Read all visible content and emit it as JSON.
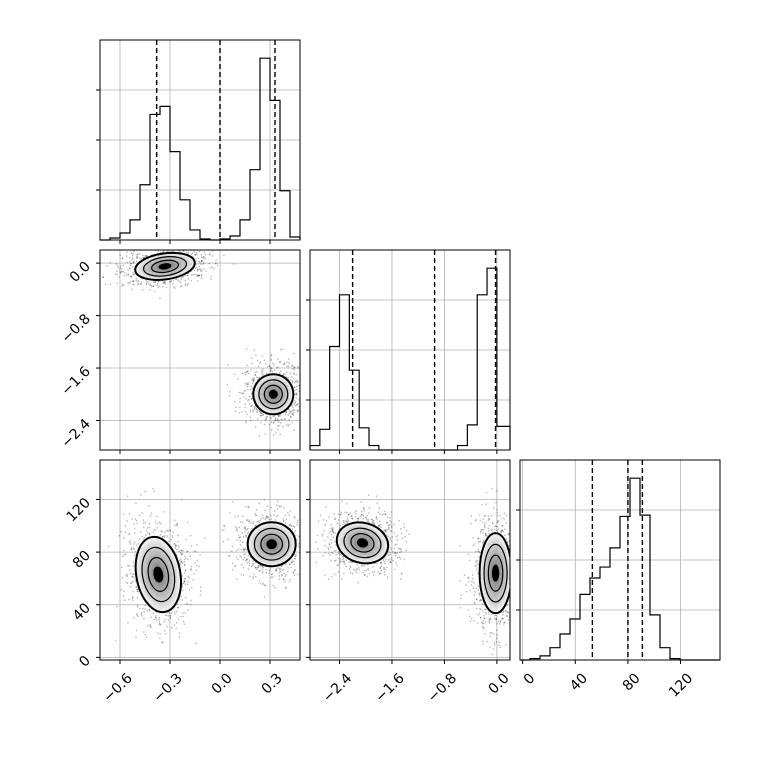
{
  "chart_data": {
    "type": "corner",
    "parameters": [
      "",
      "",
      ""
    ],
    "ranges": [
      [
        -0.72,
        0.48
      ],
      [
        -2.85,
        0.2
      ],
      [
        -2,
        150
      ]
    ],
    "ticks": [
      [
        {
          "v": -0.6,
          "label": "−0.6"
        },
        {
          "v": -0.3,
          "label": "−0.3"
        },
        {
          "v": 0.0,
          "label": "0.0"
        },
        {
          "v": 0.3,
          "label": "0.3"
        }
      ],
      [
        {
          "v": -2.4,
          "label": "−2.4"
        },
        {
          "v": -1.6,
          "label": "−1.6"
        },
        {
          "v": -0.8,
          "label": "−0.8"
        },
        {
          "v": 0.0,
          "label": "0.0"
        }
      ],
      [
        {
          "v": 0,
          "label": "0"
        },
        {
          "v": 40,
          "label": "40"
        },
        {
          "v": 80,
          "label": "80"
        },
        {
          "v": 120,
          "label": "120"
        }
      ]
    ],
    "histograms": [
      {
        "param": 0,
        "bin_edges": [
          -0.72,
          -0.66,
          -0.6,
          -0.54,
          -0.48,
          -0.42,
          -0.36,
          -0.3,
          -0.24,
          -0.18,
          -0.12,
          -0.06,
          0.0,
          0.06,
          0.12,
          0.18,
          0.24,
          0.3,
          0.36,
          0.42,
          0.48
        ],
        "counts": [
          0,
          2,
          7,
          20,
          55,
          125,
          133,
          88,
          40,
          10,
          1,
          0,
          1,
          4,
          20,
          70,
          181,
          139,
          49,
          3
        ],
        "quantiles": [
          -0.38,
          0.0,
          0.33
        ]
      },
      {
        "param": 1,
        "bin_edges": [
          -2.85,
          -2.7,
          -2.55,
          -2.4,
          -2.25,
          -2.1,
          -1.95,
          -1.8,
          -1.65,
          -1.5,
          -1.35,
          -1.2,
          -1.05,
          -0.9,
          -0.75,
          -0.6,
          -0.45,
          -0.3,
          -0.15,
          0.0,
          0.2
        ],
        "counts": [
          3,
          14,
          70,
          105,
          54,
          15,
          3,
          0,
          0,
          0,
          0,
          0,
          0,
          0,
          0,
          3,
          17,
          105,
          123,
          16
        ],
        "quantiles": [
          -2.2,
          -0.95,
          -0.02
        ]
      },
      {
        "param": 2,
        "bin_edges": [
          -2,
          5.6,
          13.2,
          20.8,
          28.4,
          36,
          43.6,
          51.2,
          58.8,
          66.4,
          74,
          81.6,
          89.2,
          96.8,
          104.4,
          112,
          119.6,
          127.2,
          134.8,
          142.4,
          150
        ],
        "counts": [
          0,
          1,
          3,
          9,
          19,
          30,
          48,
          60,
          68,
          82,
          105,
          133,
          106,
          33,
          9,
          1,
          0,
          0,
          0,
          0
        ],
        "quantiles": [
          53,
          80,
          91
        ]
      }
    ],
    "joint_modes": [
      {
        "pair": [
          0,
          1
        ],
        "modes": [
          {
            "center": [
              -0.33,
              -0.05
            ]
          },
          {
            "center": [
              0.32,
              -2.0
            ]
          }
        ]
      },
      {
        "pair": [
          0,
          2
        ],
        "modes": [
          {
            "center": [
              -0.37,
              63
            ]
          },
          {
            "center": [
              0.31,
              86
            ]
          }
        ]
      },
      {
        "pair": [
          1,
          2
        ],
        "modes": [
          {
            "center": [
              -2.05,
              87
            ]
          },
          {
            "center": [
              -0.02,
              64
            ]
          }
        ]
      }
    ]
  }
}
